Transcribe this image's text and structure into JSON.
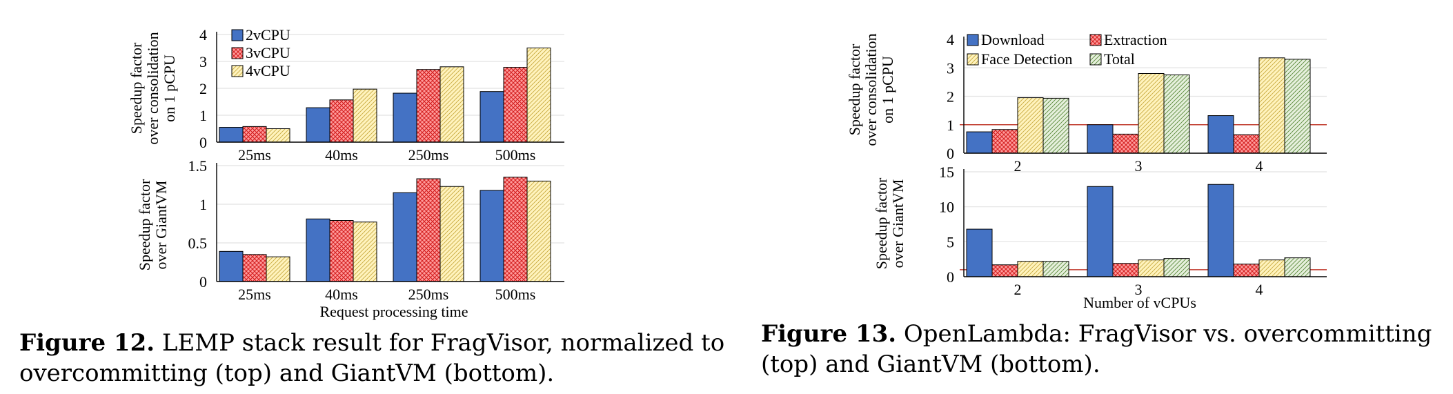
{
  "patterns": {
    "2vCPU": {
      "fill": "#4472c4",
      "type": "solid"
    },
    "3vCPU": {
      "fill": "#ff9b9b",
      "line": "#d42020",
      "type": "cross"
    },
    "4vCPU": {
      "fill": "#fff3bd",
      "line": "#c8aa40",
      "type": "diag"
    },
    "Download": {
      "fill": "#4472c4",
      "type": "solid"
    },
    "Extraction": {
      "fill": "#ff9b9b",
      "line": "#d42020",
      "type": "cross"
    },
    "Face Detection": {
      "fill": "#fff3bd",
      "line": "#c8aa40",
      "type": "diag"
    },
    "Total": {
      "fill": "#e6f0dc",
      "line": "#5a8a3a",
      "type": "diag"
    }
  },
  "chart_data": [
    {
      "type": "bar",
      "figure": "12-top",
      "ylabel_lines": [
        "Speedup factor",
        "over consolidation",
        "on 1 pCPU"
      ],
      "categories": [
        "25ms",
        "40ms",
        "250ms",
        "500ms"
      ],
      "ylim": [
        0,
        4
      ],
      "yticks": [
        "0",
        "1",
        "2",
        "3",
        "4"
      ],
      "ytick_values": [
        0,
        1,
        2,
        3,
        4
      ],
      "legend": "top-left",
      "series": [
        {
          "name": "2vCPU",
          "values": [
            0.55,
            1.28,
            1.82,
            1.88
          ]
        },
        {
          "name": "3vCPU",
          "values": [
            0.58,
            1.57,
            2.7,
            2.78
          ]
        },
        {
          "name": "4vCPU",
          "values": [
            0.5,
            1.97,
            2.8,
            3.5
          ]
        }
      ]
    },
    {
      "type": "bar",
      "figure": "12-bottom",
      "ylabel_lines": [
        "Speedup factor",
        "over GiantVM"
      ],
      "categories": [
        "25ms",
        "40ms",
        "250ms",
        "500ms"
      ],
      "xlabel": "Request processing time",
      "ylim": [
        0,
        1.5
      ],
      "yticks": [
        "0",
        "0.5",
        "1",
        "1.5"
      ],
      "ytick_values": [
        0,
        0.5,
        1,
        1.5
      ],
      "series": [
        {
          "name": "2vCPU",
          "values": [
            0.39,
            0.81,
            1.15,
            1.18
          ]
        },
        {
          "name": "3vCPU",
          "values": [
            0.35,
            0.79,
            1.33,
            1.35
          ]
        },
        {
          "name": "4vCPU",
          "values": [
            0.32,
            0.77,
            1.23,
            1.3
          ]
        }
      ]
    },
    {
      "type": "bar",
      "figure": "13-top",
      "ylabel_lines": [
        "Speedup factor",
        "over consolidation",
        "on 1 pCPU"
      ],
      "categories": [
        "2",
        "3",
        "4"
      ],
      "ylim": [
        0,
        4
      ],
      "yticks": [
        "0",
        "1",
        "2",
        "3",
        "4"
      ],
      "ytick_values": [
        0,
        1,
        2,
        3,
        4
      ],
      "reference_line": 1,
      "legend": "top-left",
      "series": [
        {
          "name": "Download",
          "values": [
            0.75,
            1.0,
            1.32
          ]
        },
        {
          "name": "Extraction",
          "values": [
            0.83,
            0.67,
            0.65
          ]
        },
        {
          "name": "Face Detection",
          "values": [
            1.95,
            2.8,
            3.35
          ]
        },
        {
          "name": "Total",
          "values": [
            1.93,
            2.75,
            3.3
          ]
        }
      ]
    },
    {
      "type": "bar",
      "figure": "13-bottom",
      "ylabel_lines": [
        "Speedup factor",
        "over GiantVM"
      ],
      "categories": [
        "2",
        "3",
        "4"
      ],
      "xlabel": "Number of vCPUs",
      "ylim": [
        0,
        15
      ],
      "yticks": [
        "0",
        "5",
        "10",
        "15"
      ],
      "ytick_values": [
        0,
        5,
        10,
        15
      ],
      "reference_line": 1,
      "series": [
        {
          "name": "Download",
          "values": [
            6.8,
            12.9,
            13.2
          ]
        },
        {
          "name": "Extraction",
          "values": [
            1.7,
            1.9,
            1.8
          ]
        },
        {
          "name": "Face Detection",
          "values": [
            2.2,
            2.4,
            2.4
          ]
        },
        {
          "name": "Total",
          "values": [
            2.2,
            2.6,
            2.7
          ]
        }
      ]
    }
  ],
  "captions": {
    "fig12": {
      "label": "Figure 12.",
      "text": " LEMP stack result for FragVisor, normalized to overcommitting (top) and GiantVM (bottom)."
    },
    "fig13": {
      "label": "Figure 13.",
      "text": " OpenLambda: FragVisor vs. overcommitting (top) and GiantVM (bottom)."
    }
  }
}
